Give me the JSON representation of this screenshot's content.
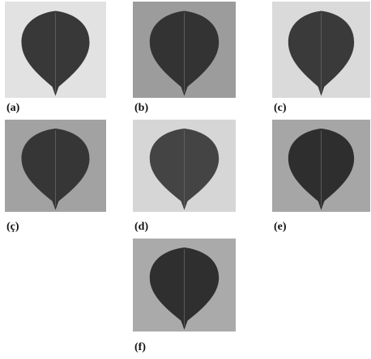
{
  "panels": [
    {
      "label": "(a)"
    },
    {
      "label": "(b)"
    },
    {
      "label": "(c)"
    },
    {
      "label": "(ç)"
    },
    {
      "label": "(d)"
    },
    {
      "label": "(e)"
    },
    {
      "label": "(f)"
    }
  ]
}
